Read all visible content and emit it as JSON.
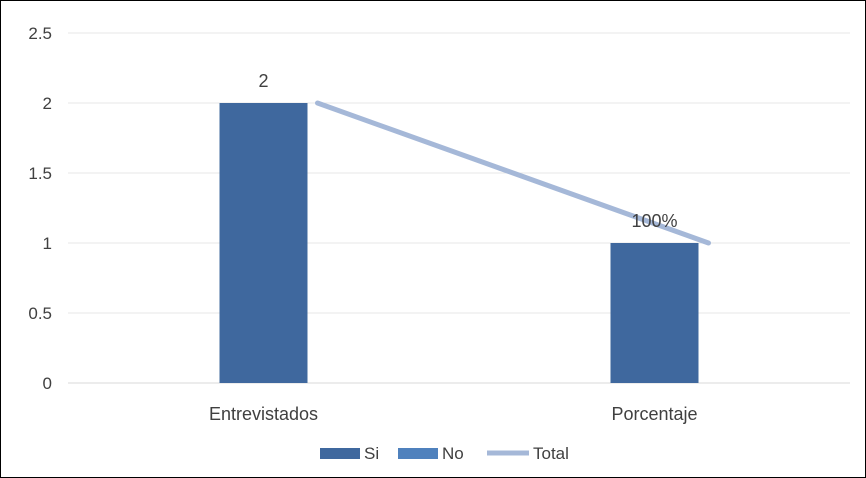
{
  "chart_data": {
    "type": "bar",
    "categories": [
      "Entrevistados",
      "Porcentaje"
    ],
    "series": [
      {
        "name": "Si",
        "kind": "bar",
        "values": [
          2,
          1
        ],
        "color": "#3f689e",
        "data_labels": [
          "2",
          "100%"
        ]
      },
      {
        "name": "No",
        "kind": "bar",
        "values": [
          0,
          0
        ],
        "color": "#4f81bd"
      },
      {
        "name": "Total",
        "kind": "line",
        "values": [
          2,
          1
        ],
        "color": "#a5b8d8"
      }
    ],
    "y_ticks": [
      "0",
      "0.5",
      "1",
      "1.5",
      "2",
      "2.5"
    ],
    "ylim": [
      0,
      2.5
    ],
    "grid": true,
    "legend_position": "bottom"
  }
}
